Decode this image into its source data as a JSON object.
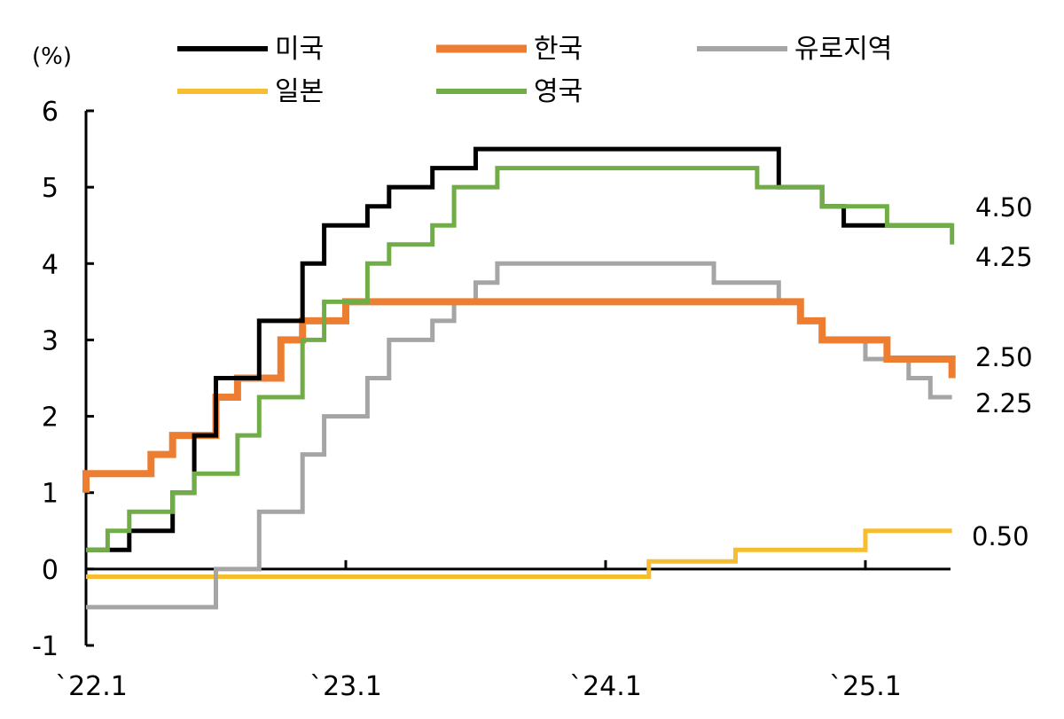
{
  "chart_data": {
    "type": "line",
    "step": true,
    "unit_label": "(%)",
    "title": "",
    "xlabel": "",
    "ylabel": "",
    "ylim": [
      -1,
      6
    ],
    "yticks": [
      "-1",
      "0",
      "1",
      "2",
      "3",
      "4",
      "5",
      "6"
    ],
    "xlim": [
      "2022-01",
      "2025-05"
    ],
    "xticks": [
      {
        "label": "`22.1",
        "date": "2022-01"
      },
      {
        "label": "`23.1",
        "date": "2023-01"
      },
      {
        "label": "`24.1",
        "date": "2024-01"
      },
      {
        "label": "`25.1",
        "date": "2025-01"
      }
    ],
    "grid": false,
    "legend_position": "top",
    "series": [
      {
        "name": "미국",
        "color": "#000000",
        "points": [
          [
            "2022-01",
            0.25
          ],
          [
            "2022-03",
            0.5
          ],
          [
            "2022-05",
            1.0
          ],
          [
            "2022-06",
            1.75
          ],
          [
            "2022-07",
            2.5
          ],
          [
            "2022-09",
            3.25
          ],
          [
            "2022-11",
            4.0
          ],
          [
            "2022-12",
            4.5
          ],
          [
            "2023-02",
            4.75
          ],
          [
            "2023-03",
            5.0
          ],
          [
            "2023-05",
            5.25
          ],
          [
            "2023-07",
            5.5
          ],
          [
            "2024-09",
            5.0
          ],
          [
            "2024-11",
            4.75
          ],
          [
            "2024-12",
            4.5
          ],
          [
            "2025-05",
            4.5
          ]
        ]
      },
      {
        "name": "한국",
        "color": "#ed7d31",
        "points": [
          [
            "2022-01",
            1.0
          ],
          [
            "2022-01",
            1.25
          ],
          [
            "2022-04",
            1.5
          ],
          [
            "2022-05",
            1.75
          ],
          [
            "2022-07",
            2.25
          ],
          [
            "2022-08",
            2.5
          ],
          [
            "2022-10",
            3.0
          ],
          [
            "2022-11",
            3.25
          ],
          [
            "2023-01",
            3.5
          ],
          [
            "2024-10",
            3.25
          ],
          [
            "2024-11",
            3.0
          ],
          [
            "2025-02",
            2.75
          ],
          [
            "2025-05",
            2.5
          ]
        ]
      },
      {
        "name": "유로지역",
        "color": "#a5a5a5",
        "points": [
          [
            "2022-01",
            -0.5
          ],
          [
            "2022-07",
            0.0
          ],
          [
            "2022-09",
            0.75
          ],
          [
            "2022-11",
            1.5
          ],
          [
            "2022-12",
            2.0
          ],
          [
            "2023-02",
            2.5
          ],
          [
            "2023-03",
            3.0
          ],
          [
            "2023-05",
            3.25
          ],
          [
            "2023-06",
            3.5
          ],
          [
            "2023-07",
            3.75
          ],
          [
            "2023-08",
            4.0
          ],
          [
            "2024-06",
            3.75
          ],
          [
            "2024-09",
            3.5
          ],
          [
            "2024-10",
            3.25
          ],
          [
            "2024-11",
            3.0
          ],
          [
            "2025-01",
            2.75
          ],
          [
            "2025-03",
            2.5
          ],
          [
            "2025-04",
            2.25
          ],
          [
            "2025-05",
            2.25
          ]
        ]
      },
      {
        "name": "일본",
        "color": "#f5bd2f",
        "points": [
          [
            "2022-01",
            -0.1
          ],
          [
            "2024-03",
            0.1
          ],
          [
            "2024-07",
            0.25
          ],
          [
            "2025-01",
            0.5
          ],
          [
            "2025-05",
            0.5
          ]
        ]
      },
      {
        "name": "영국",
        "color": "#70ad47",
        "points": [
          [
            "2022-01",
            0.25
          ],
          [
            "2022-02",
            0.5
          ],
          [
            "2022-03",
            0.75
          ],
          [
            "2022-05",
            1.0
          ],
          [
            "2022-06",
            1.25
          ],
          [
            "2022-08",
            1.75
          ],
          [
            "2022-09",
            2.25
          ],
          [
            "2022-11",
            3.0
          ],
          [
            "2022-12",
            3.5
          ],
          [
            "2023-02",
            4.0
          ],
          [
            "2023-03",
            4.25
          ],
          [
            "2023-05",
            4.5
          ],
          [
            "2023-06",
            5.0
          ],
          [
            "2023-08",
            5.25
          ],
          [
            "2024-08",
            5.0
          ],
          [
            "2024-11",
            4.75
          ],
          [
            "2025-02",
            4.5
          ],
          [
            "2025-05",
            4.25
          ]
        ]
      }
    ],
    "end_labels": [
      "4.50",
      "4.25",
      "2.50",
      "2.25",
      "0.50"
    ]
  }
}
